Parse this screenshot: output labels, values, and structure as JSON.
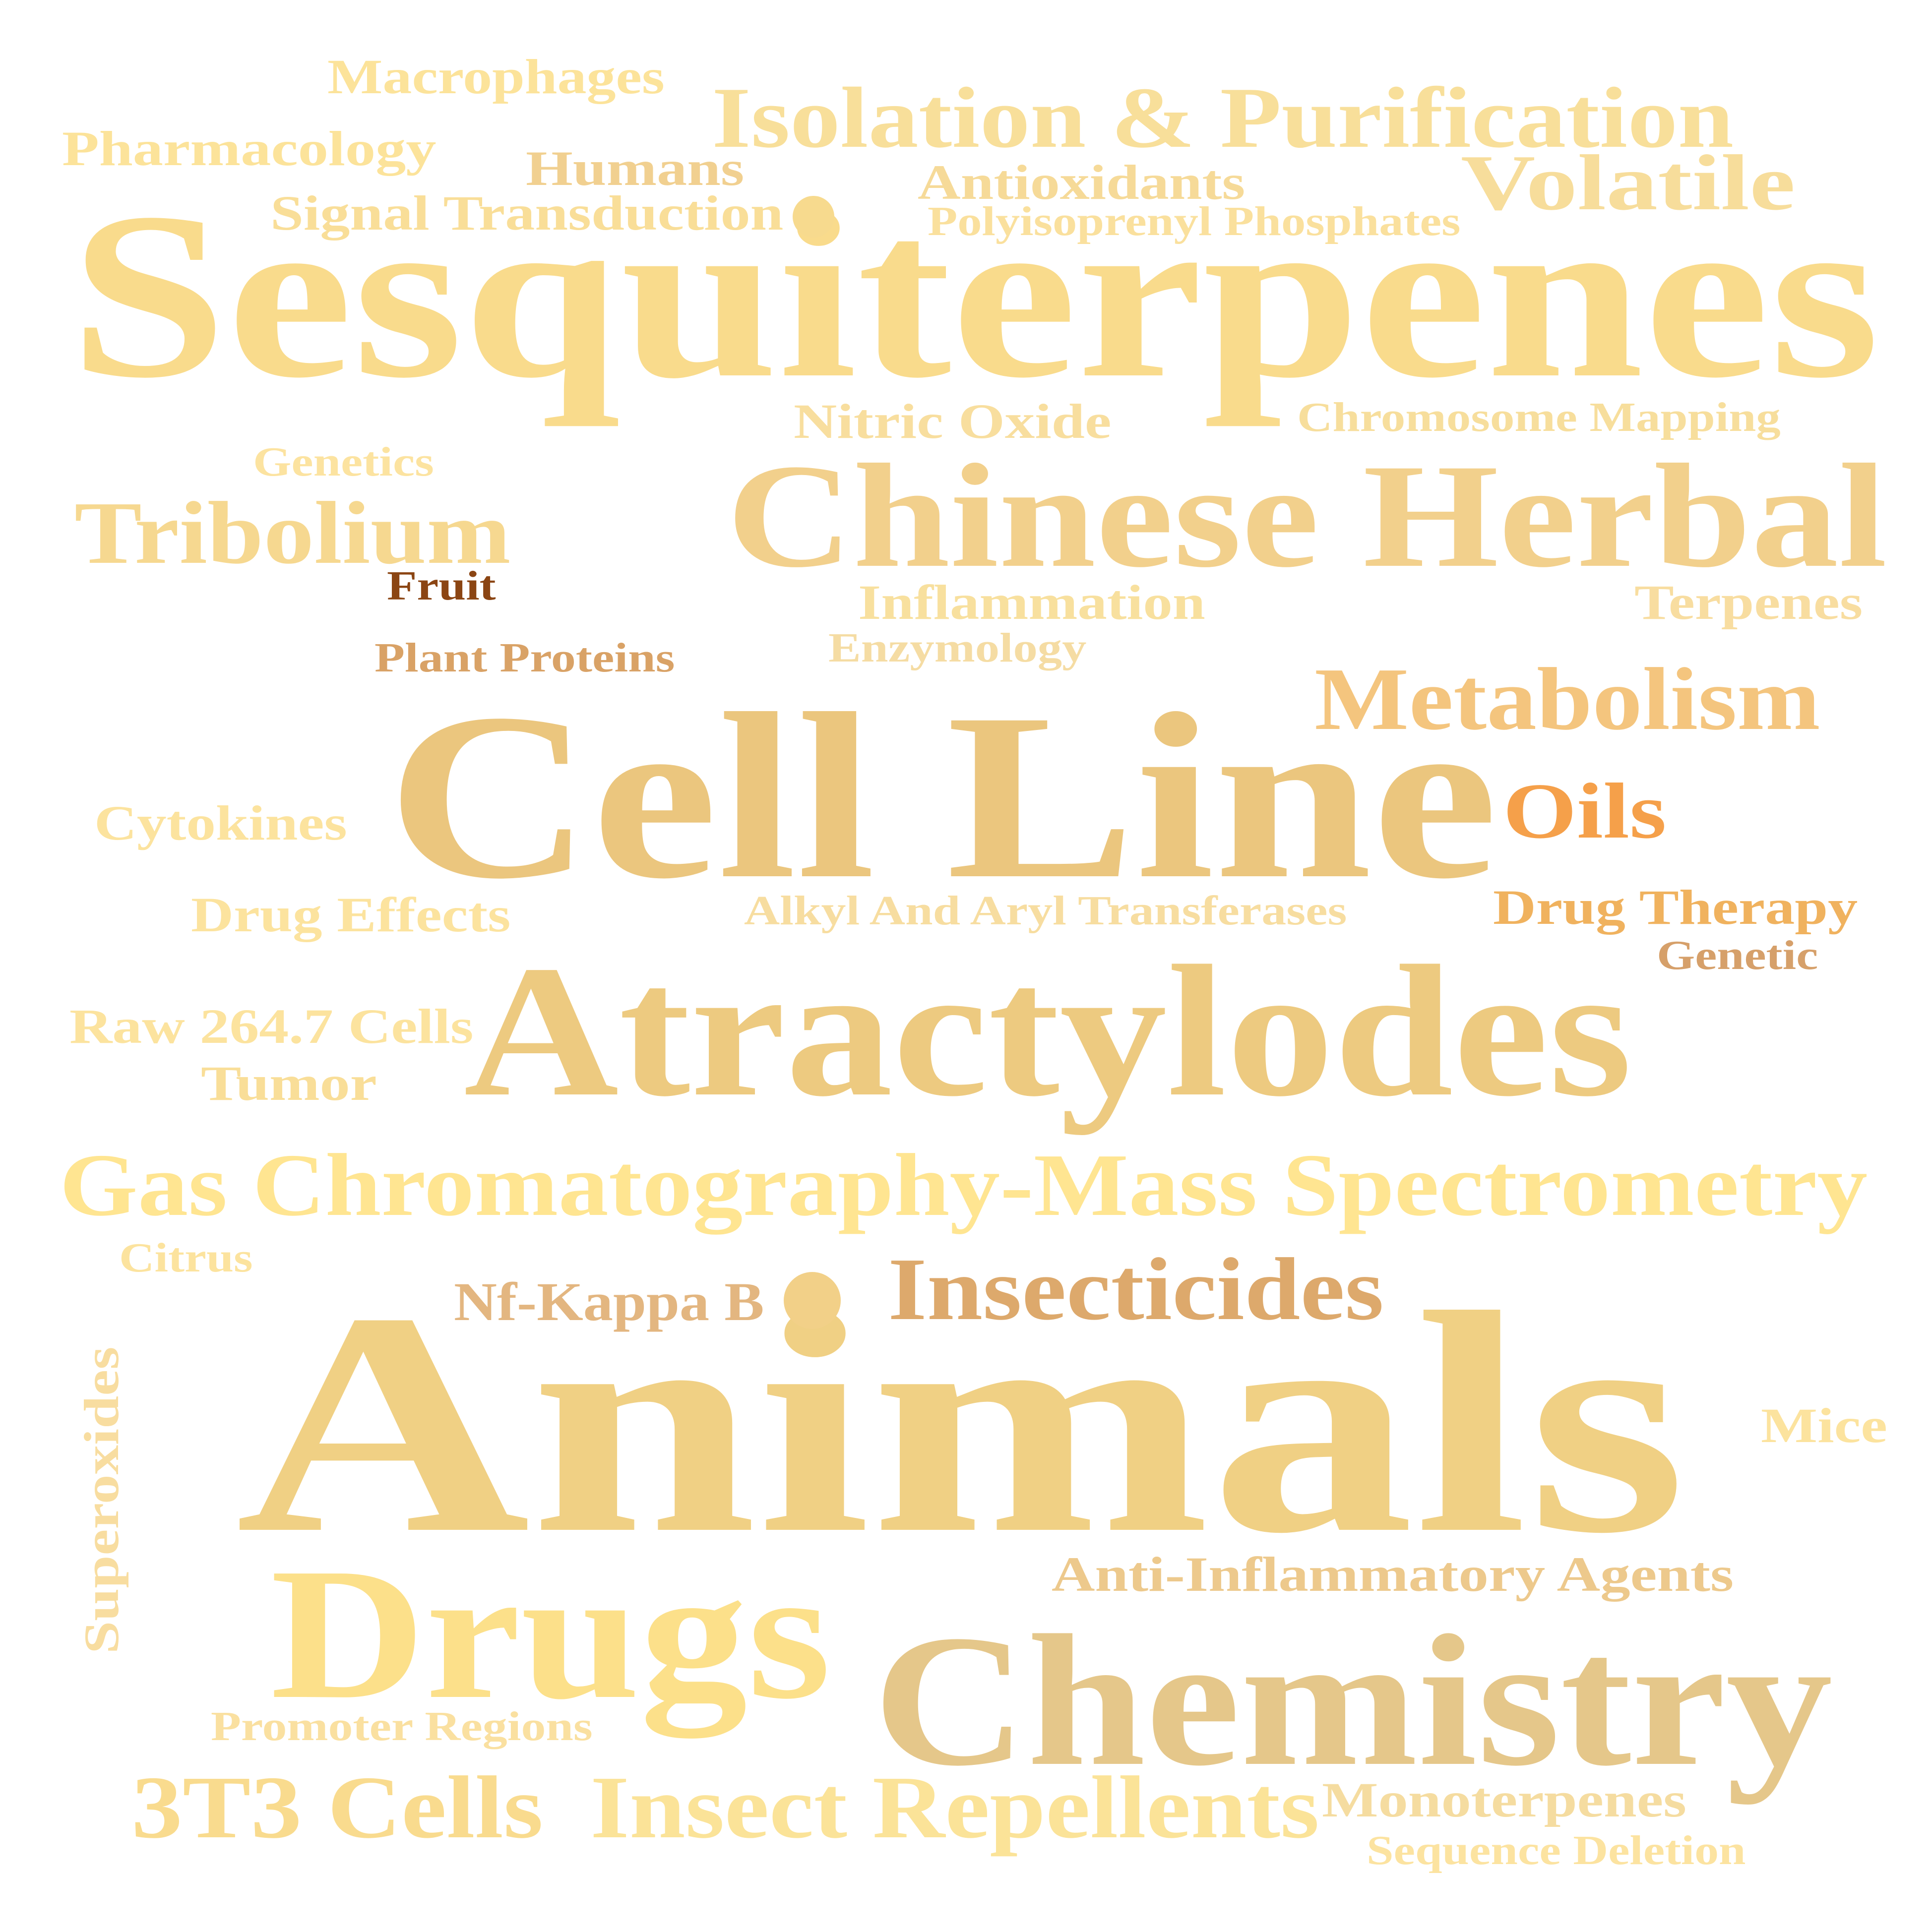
{
  "words": [
    {
      "text": "Macrophages",
      "color": "#FCE39A"
    },
    {
      "text": "Isolation & Purification",
      "color": "#F8DF9A"
    },
    {
      "text": "Pharmacology",
      "color": "#FCE39A"
    },
    {
      "text": "Humans",
      "color": "#F1D090"
    },
    {
      "text": "Antioxidants",
      "color": "#F6DA98"
    },
    {
      "text": "Volatile",
      "color": "#F7DD9B"
    },
    {
      "text": "Signal Transduction",
      "color": "#F9DE98"
    },
    {
      "text": "Polyisoprenyl Phosphates",
      "color": "#FAE09D"
    },
    {
      "text": "Sesquiterpenes",
      "color": "#F9DB8C"
    },
    {
      "text": "Nitric Oxide",
      "color": "#F8DE9E"
    },
    {
      "text": "Chromosome Mapping",
      "color": "#F7DE9C"
    },
    {
      "text": "Genetics",
      "color": "#FCE3A0"
    },
    {
      "text": "Chinese Herbal",
      "color": "#F2D08C"
    },
    {
      "text": "Tribolium",
      "color": "#F6D890"
    },
    {
      "text": "Fruit",
      "color": "#8B4513"
    },
    {
      "text": "Inflammation",
      "color": "#F8E09E"
    },
    {
      "text": "Terpenes",
      "color": "#F8DDA0"
    },
    {
      "text": "Enzymology",
      "color": "#F5DCA3"
    },
    {
      "text": "Plant Proteins",
      "color": "#D9A266"
    },
    {
      "text": "Metabolism",
      "color": "#F4C57E"
    },
    {
      "text": "Cell Line",
      "color": "#EBC67E"
    },
    {
      "text": "Oils",
      "color": "#F5A04A"
    },
    {
      "text": "Cytokines",
      "color": "#FCE39E"
    },
    {
      "text": "Drug Effects",
      "color": "#FCE39E"
    },
    {
      "text": "Alkyl And Aryl Transferases",
      "color": "#F7DDA0"
    },
    {
      "text": "Drug Therapy",
      "color": "#F0B25E"
    },
    {
      "text": "Genetic",
      "color": "#D6A06A"
    },
    {
      "text": "Raw 264.7 Cells",
      "color": "#FCE39E"
    },
    {
      "text": "Atractylodes",
      "color": "#EDCA80"
    },
    {
      "text": "Tumor",
      "color": "#F9DE98"
    },
    {
      "text": "Gas Chromatography-Mass Spectrometry",
      "color": "#FFE591"
    },
    {
      "text": "Citrus",
      "color": "#FCE39E"
    },
    {
      "text": "Nf-Kappa B",
      "color": "#E3B680"
    },
    {
      "text": "Insecticides",
      "color": "#DDA96C"
    },
    {
      "text": "Animals",
      "color": "#F0D084"
    },
    {
      "text": "Mice",
      "color": "#FCE39E"
    },
    {
      "text": "Superoxides",
      "color": "#F8DDA0"
    },
    {
      "text": "Anti-Inflammatory Agents",
      "color": "#EDC98C"
    },
    {
      "text": "Drugs",
      "color": "#FCE08A"
    },
    {
      "text": "Chemistry",
      "color": "#E5C78A"
    },
    {
      "text": "Promoter Regions",
      "color": "#FAE0A0"
    },
    {
      "text": "3T3 Cells",
      "color": "#F9DB8E"
    },
    {
      "text": "Insect Repellents",
      "color": "#FBE398"
    },
    {
      "text": "Monoterpenes",
      "color": "#F5DCA0"
    },
    {
      "text": "Sequence Deletion",
      "color": "#FCE3A0"
    }
  ],
  "dots": [
    {
      "color": "#F7DA8E"
    },
    {
      "color": "#F2D088"
    }
  ]
}
